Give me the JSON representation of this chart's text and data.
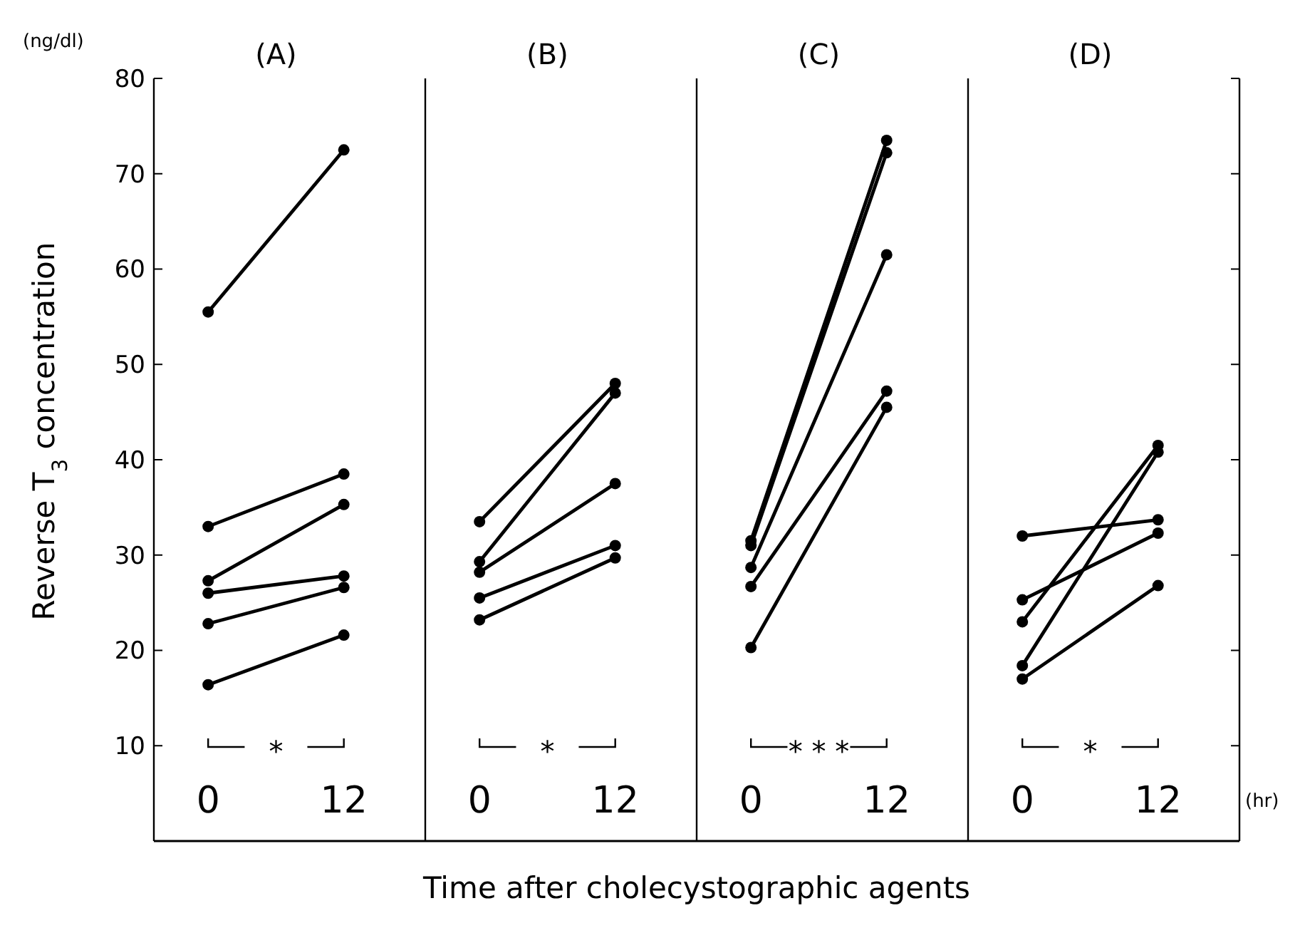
{
  "chart_data": [
    {
      "type": "line",
      "title": "(A)",
      "ylabel": "Reverse T$_{3}$ concentration",
      "xlabel": "Time after cholecystographic agents",
      "categories": [
        "0",
        "12"
      ],
      "ylim": [
        0,
        80
      ],
      "yticks": [
        10,
        20,
        30,
        40,
        50,
        60,
        70,
        80
      ],
      "marker": "circle",
      "annotations": [
        "(ng/dl)",
        "*"
      ],
      "series": [
        {
          "color": "#000000",
          "values": [
            55.5,
            72.5
          ]
        },
        {
          "color": "#000000",
          "values": [
            33,
            38.5
          ]
        },
        {
          "color": "#000000",
          "values": [
            27.3,
            35.3
          ]
        },
        {
          "color": "#000000",
          "values": [
            26,
            27.8
          ]
        },
        {
          "color": "#000000",
          "values": [
            22.8,
            26.6
          ]
        },
        {
          "color": "#000000",
          "values": [
            16.4,
            21.6
          ]
        }
      ]
    },
    {
      "type": "line",
      "title": "(B)",
      "categories": [
        "0",
        "12"
      ],
      "ylim": [
        0,
        80
      ],
      "yticks": [
        10,
        20,
        30,
        40,
        50,
        60,
        70,
        80
      ],
      "tick_labels": "x",
      "marker": "circle",
      "annotations": [
        "*"
      ],
      "series": [
        {
          "color": "#000000",
          "values": [
            33.5,
            48
          ]
        },
        {
          "color": "#000000",
          "values": [
            29.3,
            47
          ]
        },
        {
          "color": "#000000",
          "values": [
            28.2,
            37.5
          ]
        },
        {
          "color": "#000000",
          "values": [
            25.5,
            31
          ]
        },
        {
          "color": "#000000",
          "values": [
            23.2,
            29.7
          ]
        }
      ]
    },
    {
      "type": "line",
      "title": "(C)",
      "categories": [
        "0",
        "12"
      ],
      "ylim": [
        0,
        80
      ],
      "yticks": [
        10,
        20,
        30,
        40,
        50,
        60,
        70,
        80
      ],
      "tick_labels": "x",
      "marker": "circle",
      "annotations": [
        "* * *"
      ],
      "series": [
        {
          "color": "#000000",
          "values": [
            31.5,
            73.5
          ]
        },
        {
          "color": "#000000",
          "values": [
            31,
            72.2
          ]
        },
        {
          "color": "#000000",
          "values": [
            28.7,
            61.5
          ]
        },
        {
          "color": "#000000",
          "values": [
            26.7,
            47.2
          ]
        },
        {
          "color": "#000000",
          "values": [
            20.3,
            45.5
          ]
        }
      ]
    },
    {
      "type": "line",
      "title": "(D)",
      "categories": [
        "0",
        "12"
      ],
      "ylim": [
        0,
        80
      ],
      "yticks": [
        10,
        20,
        30,
        40,
        50,
        60,
        70,
        80
      ],
      "tick_labels": "x",
      "marker": "circle",
      "annotations": [
        "*",
        "(hr)"
      ],
      "series": [
        {
          "color": "#000000",
          "values": [
            32,
            33.7
          ]
        },
        {
          "color": "#000000",
          "values": [
            25.3,
            32.3
          ]
        },
        {
          "color": "#000000",
          "values": [
            23,
            41.5
          ]
        },
        {
          "color": "#000000",
          "values": [
            18.4,
            40.8
          ]
        },
        {
          "color": "#000000",
          "values": [
            17,
            26.8
          ]
        }
      ]
    }
  ]
}
